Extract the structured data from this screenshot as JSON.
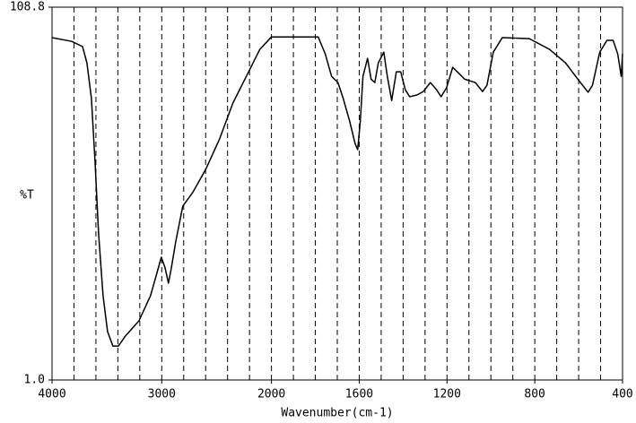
{
  "chart_data": {
    "type": "line",
    "xlabel": "Wavenumber(cm-1)",
    "ylabel": "%T",
    "xlim": [
      4000,
      400
    ],
    "ylim": [
      1,
      108.8
    ],
    "xscale_break": {
      "at": 2000,
      "ratio": 2
    },
    "xticks": [
      4000,
      3000,
      2000,
      1600,
      1200,
      800,
      400
    ],
    "yticks": [
      108.8,
      {
        "value": 1,
        "label": "1.0"
      }
    ],
    "xgrid": [
      3800,
      3600,
      3400,
      3200,
      3000,
      2800,
      2600,
      2400,
      2200,
      2000,
      1900,
      1800,
      1700,
      1600,
      1500,
      1400,
      1300,
      1200,
      1100,
      1000,
      900,
      800,
      700,
      600,
      500
    ],
    "series": [
      {
        "color": "#000000",
        "x": [
          4000,
          3820,
          3722,
          3682,
          3641,
          3608,
          3576,
          3535,
          3494,
          3445,
          3396,
          3331,
          3208,
          3102,
          3045,
          3004,
          2971,
          2939,
          2914,
          2873,
          2808,
          2718,
          2596,
          2473,
          2351,
          2229,
          2106,
          2000,
          1787,
          1755,
          1726,
          1697,
          1673,
          1644,
          1619,
          1607,
          1595,
          1583,
          1562,
          1546,
          1529,
          1513,
          1488,
          1472,
          1452,
          1431,
          1411,
          1390,
          1370,
          1337,
          1308,
          1276,
          1247,
          1227,
          1202,
          1174,
          1145,
          1120,
          1096,
          1071,
          1038,
          1018,
          989,
          948,
          825,
          733,
          660,
          598,
          557,
          537,
          504,
          471,
          443,
          422,
          406,
          400
        ],
        "values": [
          100.0,
          98.9,
          97.4,
          92.7,
          82.4,
          64.2,
          43.5,
          25.4,
          15.0,
          10.8,
          10.8,
          13.7,
          18.1,
          25.4,
          31.8,
          36.5,
          33.6,
          29.0,
          33.1,
          40.9,
          51.3,
          55.2,
          62.1,
          70.7,
          81.1,
          88.8,
          96.6,
          100.2,
          100.2,
          95.3,
          88.8,
          87.0,
          82.4,
          75.9,
          69.4,
          67.6,
          75.9,
          88.8,
          94.0,
          88.0,
          87.0,
          92.7,
          95.8,
          88.8,
          81.8,
          90.1,
          90.1,
          84.9,
          82.9,
          83.4,
          84.4,
          87.0,
          84.9,
          82.9,
          85.5,
          91.4,
          89.6,
          88.0,
          87.5,
          87.0,
          84.4,
          86.2,
          95.8,
          100.0,
          99.7,
          96.6,
          92.7,
          87.5,
          84.2,
          86.2,
          95.8,
          99.2,
          99.2,
          95.3,
          88.8,
          95.3
        ]
      }
    ]
  }
}
